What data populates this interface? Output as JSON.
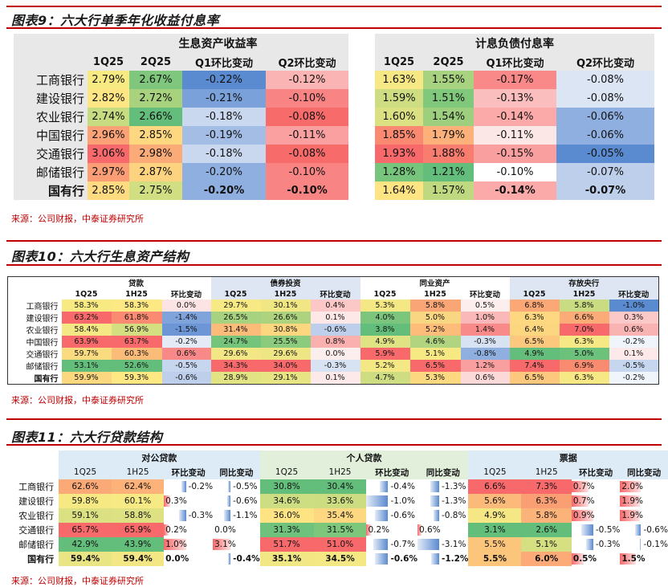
{
  "fig9": {
    "title": "图表9：六大行单季年化收益付息率",
    "left": {
      "header": "生息资产收益率",
      "cols": [
        "1Q25",
        "2Q25",
        "Q1环比变动",
        "Q2环比变动"
      ],
      "rows": [
        {
          "bank": "工商银行",
          "cells": [
            "2.79%",
            "2.67%",
            "-0.22%",
            "-0.12%"
          ],
          "colors": [
            "#f8ea83",
            "#7fc77c",
            "#5a8ad0",
            "#fbb4b4"
          ]
        },
        {
          "bank": "建设银行",
          "cells": [
            "2.82%",
            "2.72%",
            "-0.21%",
            "-0.10%"
          ],
          "colors": [
            "#fde683",
            "#a9d27f",
            "#7ba1da",
            "#f98484"
          ]
        },
        {
          "bank": "农业银行",
          "cells": [
            "2.74%",
            "2.66%",
            "-0.18%",
            "-0.08%"
          ],
          "colors": [
            "#c7dc81",
            "#63be7b",
            "#c9d8ef",
            "#f86b6b"
          ]
        },
        {
          "bank": "中国银行",
          "cells": [
            "2.96%",
            "2.85%",
            "-0.19%",
            "-0.11%"
          ],
          "colors": [
            "#fba276",
            "#fed880",
            "#a3bde5",
            "#faa0a0"
          ]
        },
        {
          "bank": "交通银行",
          "cells": [
            "3.06%",
            "2.98%",
            "-0.18%",
            "-0.08%"
          ],
          "colors": [
            "#f8696b",
            "#fbab78",
            "#c9d8ef",
            "#f86b6b"
          ]
        },
        {
          "bank": "邮储银行",
          "cells": [
            "2.97%",
            "2.87%",
            "-0.20%",
            "-0.10%"
          ],
          "colors": [
            "#fb9d75",
            "#fdd380",
            "#8fafe0",
            "#f98484"
          ]
        },
        {
          "bank": "国有行",
          "cells": [
            "2.85%",
            "2.75%",
            "-0.20%",
            "-0.10%"
          ],
          "colors": [
            "#fedb81",
            "#d1df82",
            "#8fafe0",
            "#f98484"
          ],
          "bold": true
        }
      ]
    },
    "right": {
      "header": "计息负债付息率",
      "cols": [
        "1Q25",
        "2Q25",
        "Q1环比变动",
        "Q2环比变动"
      ],
      "rows": [
        {
          "cells": [
            "1.63%",
            "1.55%",
            "-0.17%",
            "-0.08%"
          ],
          "colors": [
            "#f6e884",
            "#a7d27f",
            "#f98888",
            "#dbe5f4"
          ]
        },
        {
          "cells": [
            "1.59%",
            "1.51%",
            "-0.13%",
            "-0.08%"
          ],
          "colors": [
            "#cfdd82",
            "#80c87c",
            "#fbbebe",
            "#dbe5f4"
          ]
        },
        {
          "cells": [
            "1.60%",
            "1.54%",
            "-0.14%",
            "-0.06%"
          ],
          "colors": [
            "#dbe182",
            "#9ecf7e",
            "#fba9a9",
            "#8fafe0"
          ]
        },
        {
          "cells": [
            "1.85%",
            "1.79%",
            "-0.11%",
            "-0.06%"
          ],
          "colors": [
            "#f98970",
            "#fbb179",
            "#fce7e7",
            "#8fafe0"
          ]
        },
        {
          "cells": [
            "1.93%",
            "1.88%",
            "-0.15%",
            "-0.05%"
          ],
          "colors": [
            "#f8696b",
            "#f97d6e",
            "#fa9f9f",
            "#5a8ad0"
          ]
        },
        {
          "cells": [
            "1.28%",
            "1.21%",
            "-0.10%",
            "-0.07%"
          ],
          "colors": [
            "#77c57c",
            "#63be7b",
            "#ffffff",
            "#bdcfeb"
          ]
        },
        {
          "cells": [
            "1.64%",
            "1.57%",
            "-0.14%",
            "-0.07%"
          ],
          "colors": [
            "#ffe484",
            "#bfd981",
            "#fba9a9",
            "#bdcfeb"
          ],
          "bold": true
        }
      ]
    }
  },
  "fig10": {
    "title": "图表10：六大行生息资产结构",
    "groups": [
      "贷款",
      "债券投资",
      "同业资产",
      "存放央行"
    ],
    "subcols": [
      "1Q25",
      "1H25",
      "环比变动"
    ],
    "rows": [
      {
        "bank": "工商银行",
        "cells": [
          "58.3%",
          "58.3%",
          "0.0%",
          "29.7%",
          "30.1%",
          "0.4%",
          "5.3%",
          "5.8%",
          "0.5%",
          "6.8%",
          "5.8%",
          "-1.0%"
        ],
        "colors": [
          "#f8ea83",
          "#fce983",
          "#fce4e4",
          "#f7ea84",
          "#f1e684",
          "#fcc7c7",
          "#f4e884",
          "#f9a575",
          "#fdeeee",
          "#fba776",
          "#c9dc81",
          "#5a8ad0"
        ]
      },
      {
        "bank": "建设银行",
        "cells": [
          "63.2%",
          "61.8%",
          "-1.4%",
          "26.5%",
          "26.6%",
          "0.1%",
          "4.0%",
          "5.0%",
          "1.0%",
          "6.3%",
          "6.6%",
          "0.3%"
        ],
        "colors": [
          "#f8696b",
          "#fa8a71",
          "#7fa3db",
          "#a7d27f",
          "#aed37f",
          "#fde7e7",
          "#7bc67c",
          "#f9d681",
          "#fbb8b8",
          "#fed880",
          "#fbab78",
          "#fcc9c9"
        ]
      },
      {
        "bank": "农业银行",
        "cells": [
          "58.4%",
          "56.9%",
          "-1.5%",
          "31.4%",
          "30.8%",
          "-0.6%",
          "3.8%",
          "5.2%",
          "1.4%",
          "6.4%",
          "7.0%",
          "0.6%"
        ],
        "colors": [
          "#f4e884",
          "#d4df82",
          "#6d96d6",
          "#fbbb79",
          "#fcd780",
          "#bdcfeb",
          "#63be7b",
          "#fdbc79",
          "#f98a8a",
          "#fdd780",
          "#f8696b",
          "#fab3b3"
        ]
      },
      {
        "bank": "中国银行",
        "cells": [
          "63.9%",
          "63.7%",
          "-0.2%",
          "24.7%",
          "25.5%",
          "0.8%",
          "4.9%",
          "4.6%",
          "-0.3%",
          "6.5%",
          "6.3%",
          "-0.2%"
        ],
        "colors": [
          "#f8696b",
          "#f8696b",
          "#e4ebf7",
          "#75c47c",
          "#8acb7d",
          "#fbb0b0",
          "#e0e383",
          "#b0d47f",
          "#d7e2f3",
          "#fcc87d",
          "#f6e884",
          "#f0f4fb"
        ]
      },
      {
        "bank": "交通银行",
        "cells": [
          "59.7%",
          "60.3%",
          "0.6%",
          "29.6%",
          "29.6%",
          "0.0%",
          "5.9%",
          "5.1%",
          "-0.8%",
          "4.9%",
          "5.0%",
          "0.1%"
        ],
        "colors": [
          "#fbdb80",
          "#fcbc79",
          "#f98888",
          "#f2e784",
          "#eee685",
          "#fdeeee",
          "#f8696b",
          "#f6e984",
          "#8fafe0",
          "#63be7b",
          "#6cc17b",
          "#fde9e9"
        ]
      },
      {
        "bank": "邮储银行",
        "cells": [
          "53.1%",
          "52.6%",
          "-0.5%",
          "34.3%",
          "34.0%",
          "-0.3%",
          "5.2%",
          "6.5%",
          "1.2%",
          "7.4%",
          "6.9%",
          "-0.5%"
        ],
        "colors": [
          "#63be7b",
          "#63be7b",
          "#c6d6ef",
          "#f8696b",
          "#f8696b",
          "#d7e2f3",
          "#f3e884",
          "#f8696b",
          "#fa9f9f",
          "#f8696b",
          "#f98c70",
          "#c6d6ef"
        ]
      },
      {
        "bank": "国有行",
        "cells": [
          "59.9%",
          "59.3%",
          "-0.6%",
          "28.9%",
          "29.1%",
          "0.1%",
          "4.7%",
          "5.3%",
          "0.6%",
          "6.5%",
          "6.3%",
          "-0.2%"
        ],
        "colors": [
          "#fbd780",
          "#fde883",
          "#bdcfeb",
          "#e2e383",
          "#e6e483",
          "#fde9e9",
          "#cedd82",
          "#fcd880",
          "#fcd9d9",
          "#fcc87d",
          "#f6e884",
          "#f0f4fb"
        ],
        "bold": true
      }
    ]
  },
  "fig11": {
    "title": "图表11：六大行贷款结构",
    "groups": [
      "对公贷款",
      "个人贷款",
      "票据"
    ],
    "subcols": [
      "1Q25",
      "1H25",
      "环比变动",
      "同比变动"
    ],
    "rows": [
      {
        "bank": "工商银行",
        "cells": [
          "62.6%",
          "62.4%",
          "-0.2%",
          "-0.5%",
          "30.8%",
          "30.4%",
          "-0.4%",
          "-1.3%",
          "6.6%",
          "7.3%",
          "0.7%",
          "2.0%"
        ],
        "colors": [
          "#fba977",
          "#fcb279",
          "",
          "",
          "#63be7b",
          "#63be7b",
          "",
          "",
          "#f8696b",
          "#f8696b",
          "",
          ""
        ]
      },
      {
        "bank": "建设银行",
        "cells": [
          "59.8%",
          "60.1%",
          "0.3%",
          "-0.6%",
          "34.6%",
          "33.6%",
          "-1.0%",
          "-1.3%",
          "5.6%",
          "6.3%",
          "0.7%",
          "1.9%"
        ],
        "colors": [
          "#f6e984",
          "#f7e984",
          "",
          "",
          "#ccdd82",
          "#cbdc81",
          "",
          "",
          "#fbba79",
          "#fa9e74",
          "",
          ""
        ]
      },
      {
        "bank": "农业银行",
        "cells": [
          "59.1%",
          "58.8%",
          "-0.3%",
          "-1.1%",
          "36.0%",
          "35.4%",
          "-0.6%",
          "-0.8%",
          "4.9%",
          "5.8%",
          "0.9%",
          "1.9%"
        ],
        "colors": [
          "#dbe182",
          "#dde182",
          "",
          "",
          "#fde382",
          "#fed880",
          "",
          "",
          "#f5e884",
          "#fbb379",
          "",
          ""
        ]
      },
      {
        "bank": "交通银行",
        "cells": [
          "65.7%",
          "65.9%",
          "0.2%",
          "0.0%",
          "31.3%",
          "31.5%",
          "0.2%",
          "0.6%",
          "3.1%",
          "2.6%",
          "-0.5%",
          "-0.6%"
        ],
        "colors": [
          "#f8696b",
          "#f8696b",
          "",
          "",
          "#6fc27c",
          "#7dc77c",
          "",
          "",
          "#63be7b",
          "#63be7b",
          "",
          ""
        ]
      },
      {
        "bank": "邮储银行",
        "cells": [
          "42.9%",
          "43.9%",
          "1.0%",
          "3.1%",
          "51.7%",
          "51.0%",
          "-0.7%",
          "-3.1%",
          "5.5%",
          "5.1%",
          "-0.3%",
          "-0.1%"
        ],
        "colors": [
          "#63be7b",
          "#63be7b",
          "",
          "",
          "#f8696b",
          "#f8696b",
          "",
          "",
          "#fbc57c",
          "#d6df82",
          "",
          ""
        ]
      },
      {
        "bank": "国有行",
        "cells": [
          "59.4%",
          "59.4%",
          "0.0%",
          "-0.4%",
          "35.1%",
          "34.5%",
          "-0.6%",
          "-1.2%",
          "5.5%",
          "6.0%",
          "0.5%",
          "1.5%"
        ],
        "colors": [
          "#eae584",
          "#f2e784",
          "",
          "",
          "#f1e784",
          "#f3e884",
          "",
          "",
          "#fbc57c",
          "#fcab78",
          "",
          ""
        ],
        "bold": true
      }
    ]
  },
  "source": "来源：公司财报，中泰证券研究所"
}
